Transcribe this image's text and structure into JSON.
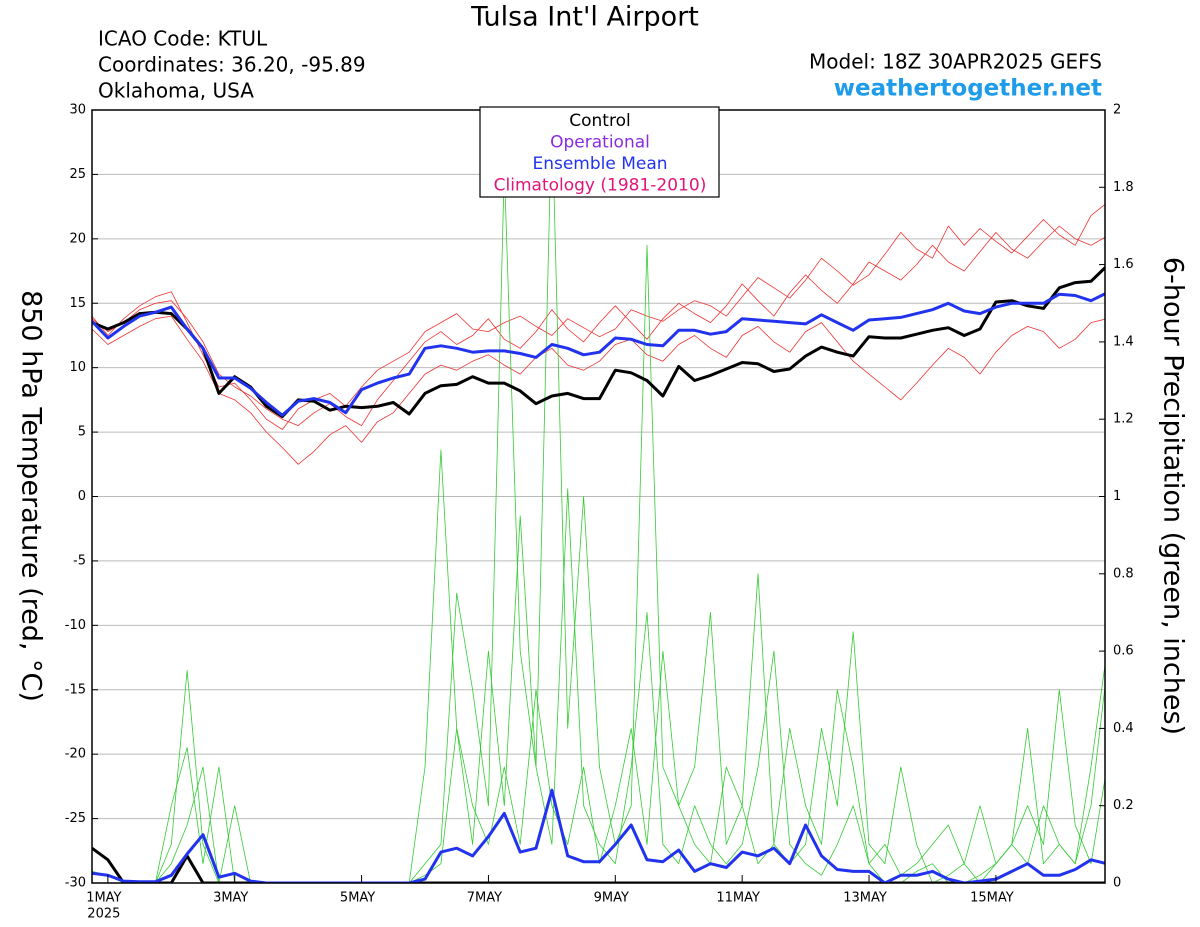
{
  "chart_data": {
    "type": "line",
    "title": "Tulsa Int'l Airport",
    "info": [
      "ICAO Code: KTUL",
      "Coordinates: 36.20, -95.89",
      "Oklahoma, USA"
    ],
    "model": "Model: 18Z 30APR2025 GEFS",
    "site": "weathertogether.net",
    "y_label": "850 hPa Temperature (red, °C)",
    "y2_label": "6-hour Precipitation (green, inches)",
    "legend": [
      {
        "name": "Control",
        "color": "#000000"
      },
      {
        "name": "Operational",
        "color": "#8a2be2"
      },
      {
        "name": "Ensemble Mean",
        "color": "#2233ee"
      },
      {
        "name": "Climatology (1981-2010)",
        "color": "#e0157a"
      }
    ],
    "x_year": "2025",
    "xlim": [
      0.75,
      16.72
    ],
    "xticks": [
      {
        "value": 1,
        "label": "1MAY"
      },
      {
        "value": 3,
        "label": "3MAY"
      },
      {
        "value": 5,
        "label": "5MAY"
      },
      {
        "value": 7,
        "label": "7MAY"
      },
      {
        "value": 9,
        "label": "9MAY"
      },
      {
        "value": 11,
        "label": "11MAY"
      },
      {
        "value": 13,
        "label": "13MAY"
      },
      {
        "value": 15,
        "label": "15MAY"
      }
    ],
    "ylim": [
      -30,
      30
    ],
    "yticks": [
      -30,
      -25,
      -20,
      -15,
      -10,
      -5,
      0,
      5,
      10,
      15,
      20,
      25,
      30
    ],
    "y2lim": [
      0,
      2
    ],
    "y2ticks": [
      0,
      0.2,
      0.4,
      0.6,
      0.8,
      1,
      1.2,
      1.4,
      1.6,
      1.8,
      2
    ],
    "grid": true,
    "x": [
      0.75,
      1,
      1.25,
      1.5,
      1.75,
      2,
      2.25,
      2.5,
      2.75,
      3,
      3.25,
      3.5,
      3.75,
      4,
      4.25,
      4.5,
      4.75,
      5,
      5.25,
      5.5,
      5.75,
      6,
      6.25,
      6.5,
      6.75,
      7,
      7.25,
      7.5,
      7.75,
      8,
      8.25,
      8.5,
      8.75,
      9,
      9.25,
      9.5,
      9.75,
      10,
      10.25,
      10.5,
      10.75,
      11,
      11.25,
      11.5,
      11.75,
      12,
      12.25,
      12.5,
      12.75,
      13,
      13.25,
      13.5,
      13.75,
      14,
      14.25,
      14.5,
      14.75,
      15,
      15.25,
      15.5,
      15.75,
      16,
      16.25,
      16.5,
      16.75
    ],
    "members": [
      {
        "color": "#ee3333",
        "values": [
          14,
          12.5,
          13.8,
          14.8,
          15.5,
          15.9,
          13.5,
          11,
          8.5,
          8.8,
          7.5,
          6,
          5.2,
          6.8,
          7.5,
          8,
          7,
          8.5,
          9.8,
          10.5,
          11.2,
          12.8,
          13.5,
          14.2,
          13,
          12.8,
          13.5,
          14,
          13.2,
          12.5,
          13.8,
          13.1,
          12.4,
          13,
          14.5,
          14,
          13.6,
          14.5,
          15.2,
          14.8,
          14,
          15.5,
          17,
          16.2,
          15.4,
          16.8,
          18.5,
          17.5,
          16.4,
          17.2,
          18.8,
          20.5,
          19.2,
          18.5,
          21,
          19.5,
          20.8,
          19.8,
          18.9,
          20.2,
          21.5,
          20.3,
          19.5,
          21.8,
          22.8
        ]
      },
      {
        "color": "#ee3333",
        "values": [
          13,
          11.8,
          12.5,
          13.2,
          13.8,
          14,
          12.2,
          10.5,
          8,
          7.5,
          6.5,
          5,
          3.8,
          2.5,
          3.5,
          4.8,
          5.5,
          4.2,
          5.8,
          6.5,
          8,
          9.5,
          10.2,
          9.8,
          10.5,
          11,
          10.2,
          9.5,
          10.8,
          11.5,
          10.2,
          9.8,
          10.5,
          11.8,
          12.2,
          11,
          10.5,
          11.8,
          12.5,
          11.5,
          10.8,
          12.5,
          13.2,
          12,
          11.2,
          12.8,
          13.5,
          12,
          10.5,
          9.5,
          8.5,
          7.5,
          8.8,
          10.2,
          11.5,
          10.8,
          9.5,
          11.2,
          12.5,
          13.2,
          12.8,
          11.5,
          12.2,
          13.5,
          13.8
        ]
      },
      {
        "color": "#ee3333",
        "values": [
          13.8,
          12.8,
          13.5,
          14.5,
          15,
          15.2,
          13.8,
          12,
          9.5,
          8.5,
          7.8,
          6.8,
          6,
          5.5,
          6.5,
          7.2,
          6.2,
          5.5,
          7.5,
          9,
          10.5,
          12,
          12.8,
          11.8,
          12.5,
          13.8,
          12.2,
          11.5,
          12.8,
          14.5,
          13,
          12,
          13.5,
          14.8,
          13.5,
          12.2,
          13.8,
          15,
          14.2,
          13.5,
          14.8,
          16.5,
          15.2,
          14,
          15.8,
          17.2,
          16,
          15,
          16.5,
          18.2,
          17.5,
          16.8,
          18,
          19.5,
          18.2,
          17.5,
          19,
          20.5,
          19.2,
          18.5,
          19.8,
          21,
          20,
          19.5,
          20.2
        ]
      },
      {
        "color": "#33cc33",
        "axis": "y2",
        "values": [
          0,
          0,
          0,
          0,
          0,
          0.1,
          0.55,
          0.1,
          0,
          0,
          0,
          0,
          0,
          0,
          0,
          0,
          0,
          0,
          0,
          0,
          0,
          0.3,
          1.12,
          0.4,
          0.1,
          0.6,
          0.2,
          0.95,
          0.3,
          0.1,
          1.02,
          0.2,
          0.1,
          0.05,
          0.3,
          0.7,
          0.1,
          0.05,
          0.2,
          0.1,
          0.05,
          0.1,
          0.3,
          0.6,
          0.1,
          0.05,
          0.02,
          0.1,
          0.2,
          0.05,
          0,
          0,
          0.03,
          0.05,
          0,
          0,
          0.02,
          0.05,
          0.1,
          0.4,
          0.05,
          0.1,
          0.05,
          0.3,
          0.6
        ]
      },
      {
        "color": "#33cc33",
        "axis": "y2",
        "values": [
          0,
          0,
          0,
          0,
          0,
          0.2,
          0.35,
          0.05,
          0.3,
          0,
          0,
          0,
          0,
          0,
          0,
          0,
          0,
          0,
          0,
          0,
          0,
          0.05,
          0.1,
          0.75,
          0.5,
          0.2,
          1.85,
          0.6,
          0.3,
          2.0,
          0.4,
          1.0,
          0.3,
          0.1,
          0.2,
          1.65,
          0.3,
          0.2,
          0.1,
          0.05,
          0.3,
          0.2,
          0.8,
          0.1,
          0.05,
          0.1,
          0.4,
          0.2,
          0.65,
          0.1,
          0.05,
          0.3,
          0.1,
          0,
          0.02,
          0.05,
          0,
          0.05,
          0.1,
          0.2,
          0.1,
          0.5,
          0.15,
          0.05,
          0.3
        ]
      },
      {
        "color": "#33cc33",
        "axis": "y2",
        "values": [
          0.03,
          0.02,
          0,
          0,
          0,
          0.05,
          0.15,
          0.3,
          0,
          0.2,
          0,
          0,
          0,
          0,
          0,
          0,
          0,
          0,
          0,
          0,
          0,
          0.02,
          0.05,
          0.4,
          0.2,
          0.1,
          0.3,
          0.1,
          0.5,
          0.2,
          0.1,
          0.3,
          0.05,
          0.2,
          0.4,
          0.1,
          0.6,
          0.2,
          0.3,
          0.7,
          0.1,
          0.2,
          0.05,
          0.1,
          0.4,
          0.2,
          0.1,
          0.5,
          0.3,
          0.05,
          0.1,
          0.02,
          0.05,
          0.1,
          0.15,
          0.05,
          0.2,
          0.05,
          0.1,
          0.05,
          0.2,
          0.1,
          0.05,
          0.2,
          0.55
        ]
      }
    ],
    "series": [
      {
        "color": "#000000",
        "axis": "y2",
        "values": [
          0.09,
          0.06,
          0,
          0,
          0,
          0,
          0.07,
          0,
          0,
          0,
          0,
          0,
          0,
          0,
          0,
          0,
          0,
          0,
          0,
          0,
          0,
          0,
          0,
          0,
          0,
          0,
          0,
          0,
          0,
          0,
          0,
          0,
          0,
          0,
          0,
          0,
          0,
          0,
          0,
          0,
          0,
          0,
          0,
          0,
          0,
          0,
          0,
          0,
          0,
          0,
          0,
          0,
          0,
          0,
          0,
          0,
          0,
          0,
          0,
          0,
          0,
          0,
          0,
          0,
          0
        ]
      },
      {
        "color": "#2233ee",
        "axis": "y2",
        "values": [
          0.025,
          0.02,
          0.005,
          0.003,
          0.003,
          0.02,
          0.075,
          0.125,
          0.015,
          0.025,
          0.005,
          0,
          0,
          0,
          0,
          0,
          0,
          0,
          0,
          0,
          0,
          0.01,
          0.08,
          0.09,
          0.07,
          0.12,
          0.18,
          0.08,
          0.09,
          0.24,
          0.07,
          0.055,
          0.055,
          0.1,
          0.15,
          0.06,
          0.055,
          0.085,
          0.03,
          0.05,
          0.04,
          0.08,
          0.07,
          0.09,
          0.05,
          0.15,
          0.07,
          0.035,
          0.03,
          0.03,
          0,
          0.02,
          0.02,
          0.03,
          0.01,
          0,
          0.005,
          0.01,
          0.03,
          0.05,
          0.02,
          0.02,
          0.035,
          0.06,
          0.05
        ]
      },
      {
        "color": "#000000",
        "values": [
          13.5,
          13.0,
          13.5,
          14.2,
          14.3,
          14.2,
          13.0,
          11.5,
          8.0,
          9.3,
          8.5,
          7.0,
          6.2,
          7.5,
          7.4,
          6.7,
          7.0,
          6.9,
          7.0,
          7.3,
          6.4,
          8.0,
          8.6,
          8.7,
          9.3,
          8.8,
          8.8,
          8.2,
          7.2,
          7.8,
          8.0,
          7.6,
          7.6,
          9.8,
          9.6,
          9.0,
          7.8,
          10.1,
          9.0,
          9.4,
          9.9,
          10.4,
          10.3,
          9.7,
          9.9,
          10.9,
          11.6,
          11.2,
          10.9,
          12.4,
          12.3,
          12.3,
          12.6,
          12.9,
          13.1,
          12.5,
          13.0,
          15.1,
          15.2,
          14.8,
          14.6,
          16.2,
          16.6,
          16.7,
          17.9
        ]
      },
      {
        "color": "#2233ee",
        "values": [
          13.6,
          12.3,
          13.2,
          14.0,
          14.3,
          14.7,
          13.0,
          11.5,
          9.2,
          9.2,
          8.4,
          7.3,
          6.3,
          7.4,
          7.6,
          7.3,
          6.5,
          8.3,
          8.8,
          9.2,
          9.5,
          11.5,
          11.7,
          11.5,
          11.2,
          11.3,
          11.3,
          11.1,
          10.8,
          11.8,
          11.5,
          11.0,
          11.2,
          12.3,
          12.2,
          11.8,
          11.7,
          12.9,
          12.9,
          12.6,
          12.8,
          13.8,
          13.7,
          13.6,
          13.5,
          13.4,
          14.1,
          13.5,
          12.9,
          13.7,
          13.8,
          13.9,
          14.2,
          14.5,
          15.0,
          14.4,
          14.2,
          14.7,
          15.0,
          15.0,
          15.0,
          15.7,
          15.6,
          15.2,
          15.8
        ]
      }
    ]
  }
}
